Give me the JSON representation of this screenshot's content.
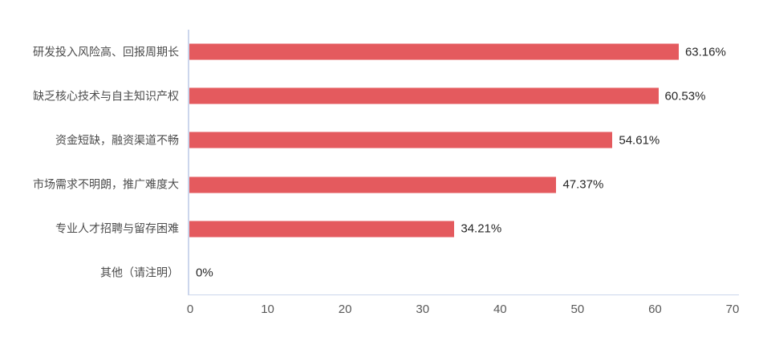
{
  "chart_data": {
    "type": "bar",
    "orientation": "horizontal",
    "title": "",
    "xlabel": "",
    "ylabel": "",
    "categories": [
      "研发投入风险高、回报周期长",
      "缺乏核心技术与自主知识产权",
      "资金短缺，融资渠道不畅",
      "市场需求不明朗，推广难度大",
      "专业人才招聘与留存困难",
      "其他（请注明）"
    ],
    "values": [
      63.16,
      60.53,
      54.61,
      47.37,
      34.21,
      0
    ],
    "value_labels": [
      "63.16%",
      "60.53%",
      "54.61%",
      "47.37%",
      "34.21%",
      "0%"
    ],
    "x_ticks": [
      "0",
      "10",
      "20",
      "30",
      "40",
      "50",
      "60",
      "70"
    ],
    "x_tick_values": [
      0,
      10,
      20,
      30,
      40,
      50,
      60,
      70
    ],
    "xlim": [
      0,
      70
    ],
    "grid": "off",
    "legend": "none",
    "colors": {
      "bar": "#e45a5e",
      "axis_line": "#ccd6ec",
      "category_text": "#4d4d4d",
      "value_text": "#262626",
      "tick_text": "#595959",
      "background": "#ffffff"
    }
  }
}
